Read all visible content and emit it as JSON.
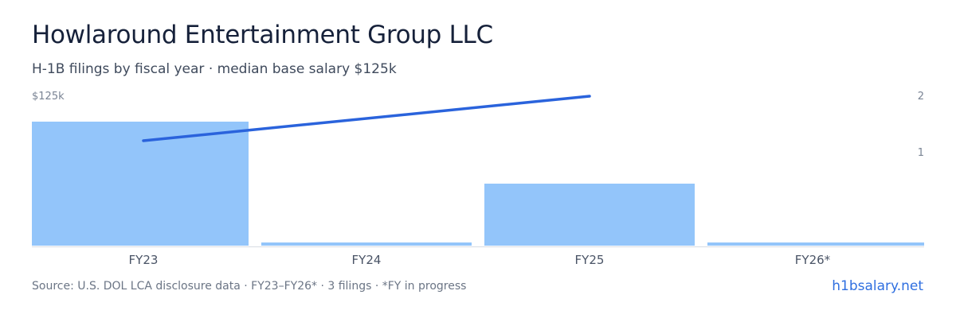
{
  "title": "Howlaround Entertainment Group LLC",
  "subtitle": "H-1B filings by fiscal year · median base salary $125k",
  "footer": {
    "source": "Source: U.S. DOL LCA disclosure data · FY23–FY26* · 3 filings · *FY in progress",
    "brand": "h1bsalary.net"
  },
  "colors": {
    "bar": "#93c5fa",
    "line": "#2a63dc",
    "axis_text": "#7a8494",
    "baseline": "#d7dce3"
  },
  "chart_data": {
    "type": "bar",
    "categories": [
      "FY23",
      "FY24",
      "FY25",
      "FY26*"
    ],
    "series": [
      {
        "type": "bar",
        "values": [
          2,
          0,
          1,
          0
        ],
        "axis": "right"
      },
      {
        "type": "line",
        "values": [
          125000,
          null,
          130000,
          null
        ],
        "axis": "left"
      }
    ],
    "left_axis": {
      "ticks": [
        {
          "value": 125000,
          "label": "$125k"
        }
      ]
    },
    "right_axis": {
      "ticks": [
        {
          "value": 2,
          "label": "2"
        },
        {
          "value": 1,
          "label": "1"
        }
      ],
      "range": [
        0,
        2
      ]
    },
    "grid": false
  }
}
